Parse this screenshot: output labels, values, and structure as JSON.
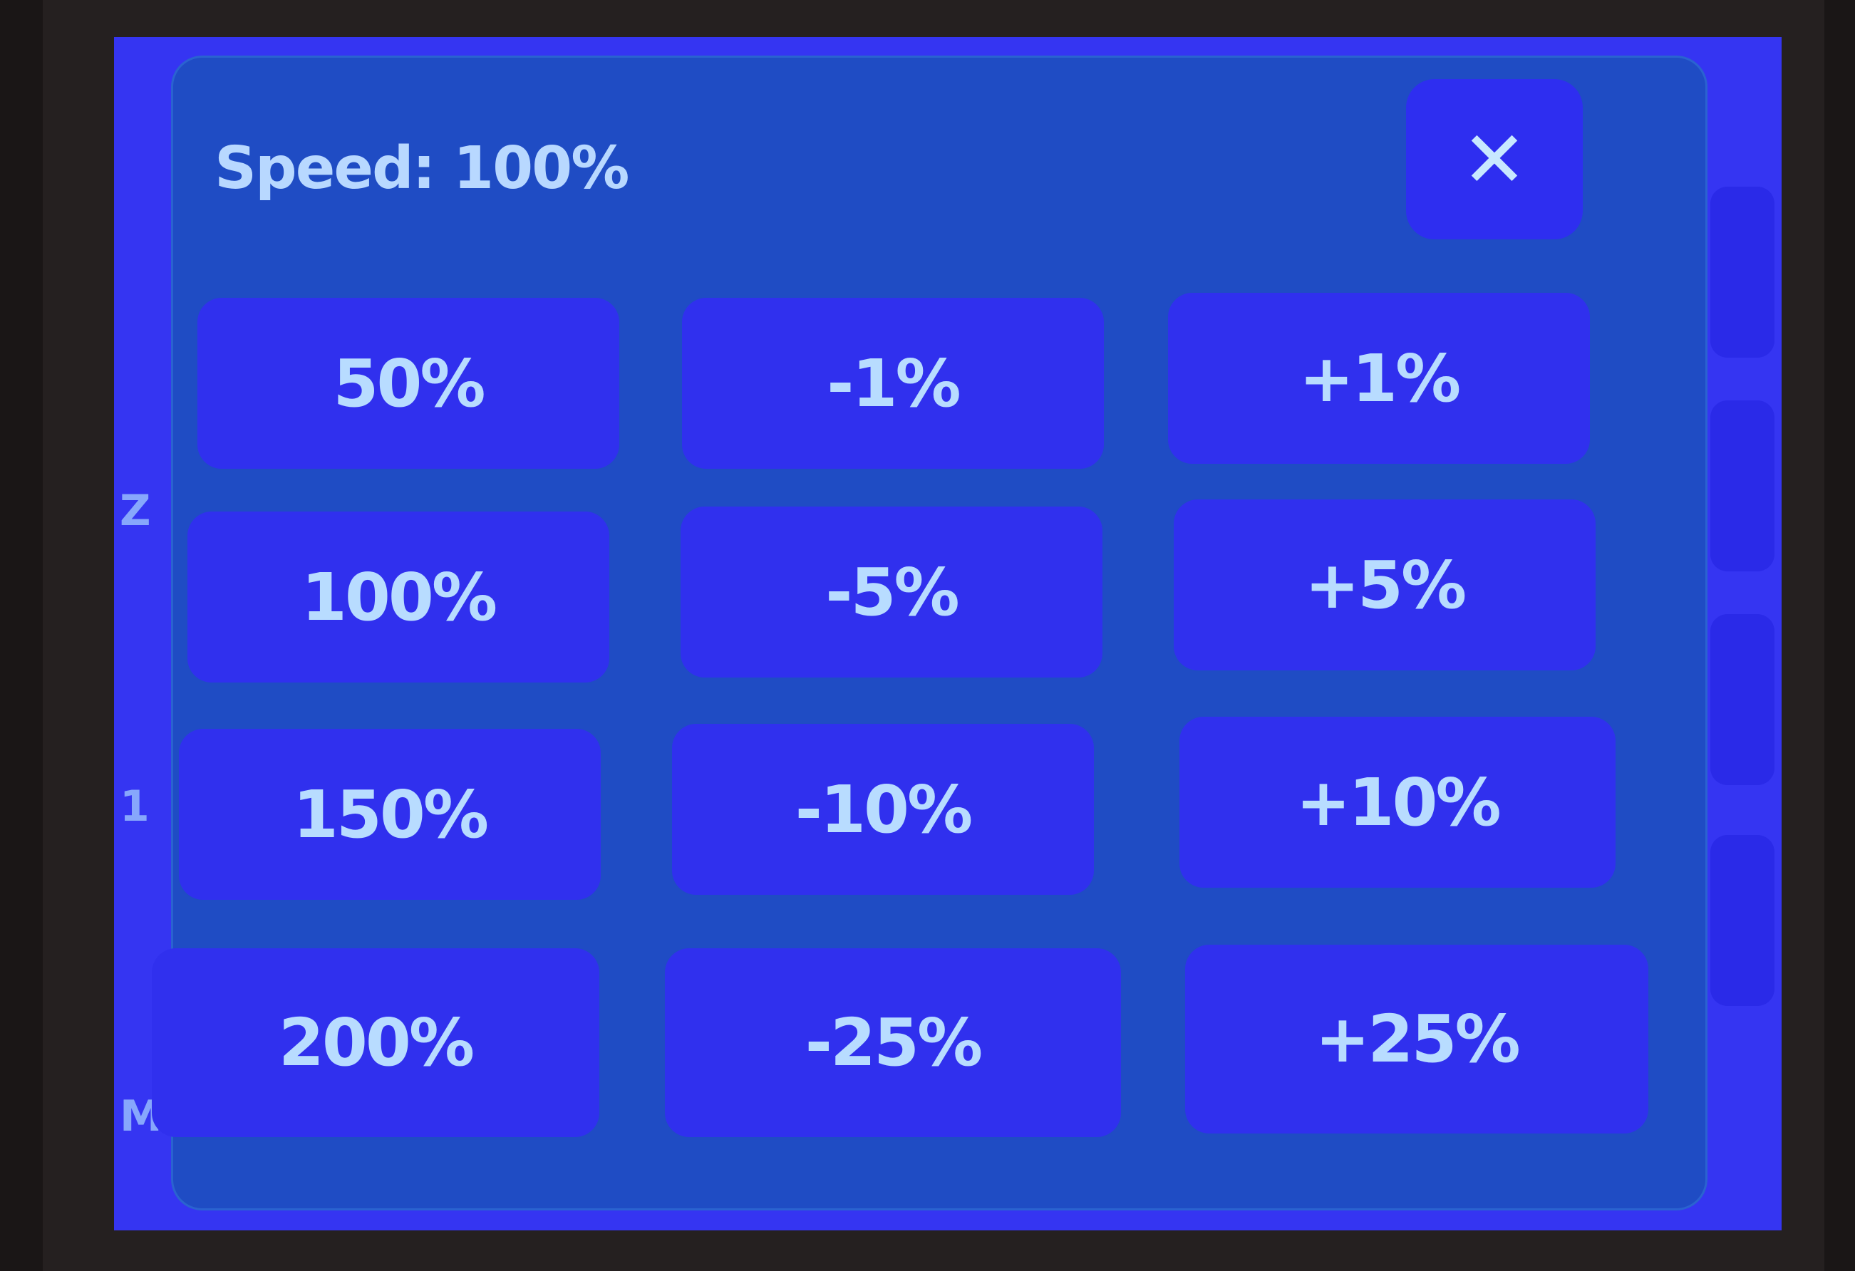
{
  "dialog": {
    "title": "Speed: 100%",
    "close_label": "✕",
    "buttons": [
      [
        "50%",
        "-1%",
        "+1%"
      ],
      [
        "100%",
        "-5%",
        "+5%"
      ],
      [
        "150%",
        "-10%",
        "+10%"
      ],
      [
        "200%",
        "-25%",
        "+25%"
      ]
    ]
  },
  "background": {
    "labels": [
      "Z",
      "1",
      "M"
    ]
  },
  "colors": {
    "screen": "#3535f2",
    "dialog": "#1f4cc4",
    "button": "#3030ee",
    "text": "#b8dcff"
  }
}
